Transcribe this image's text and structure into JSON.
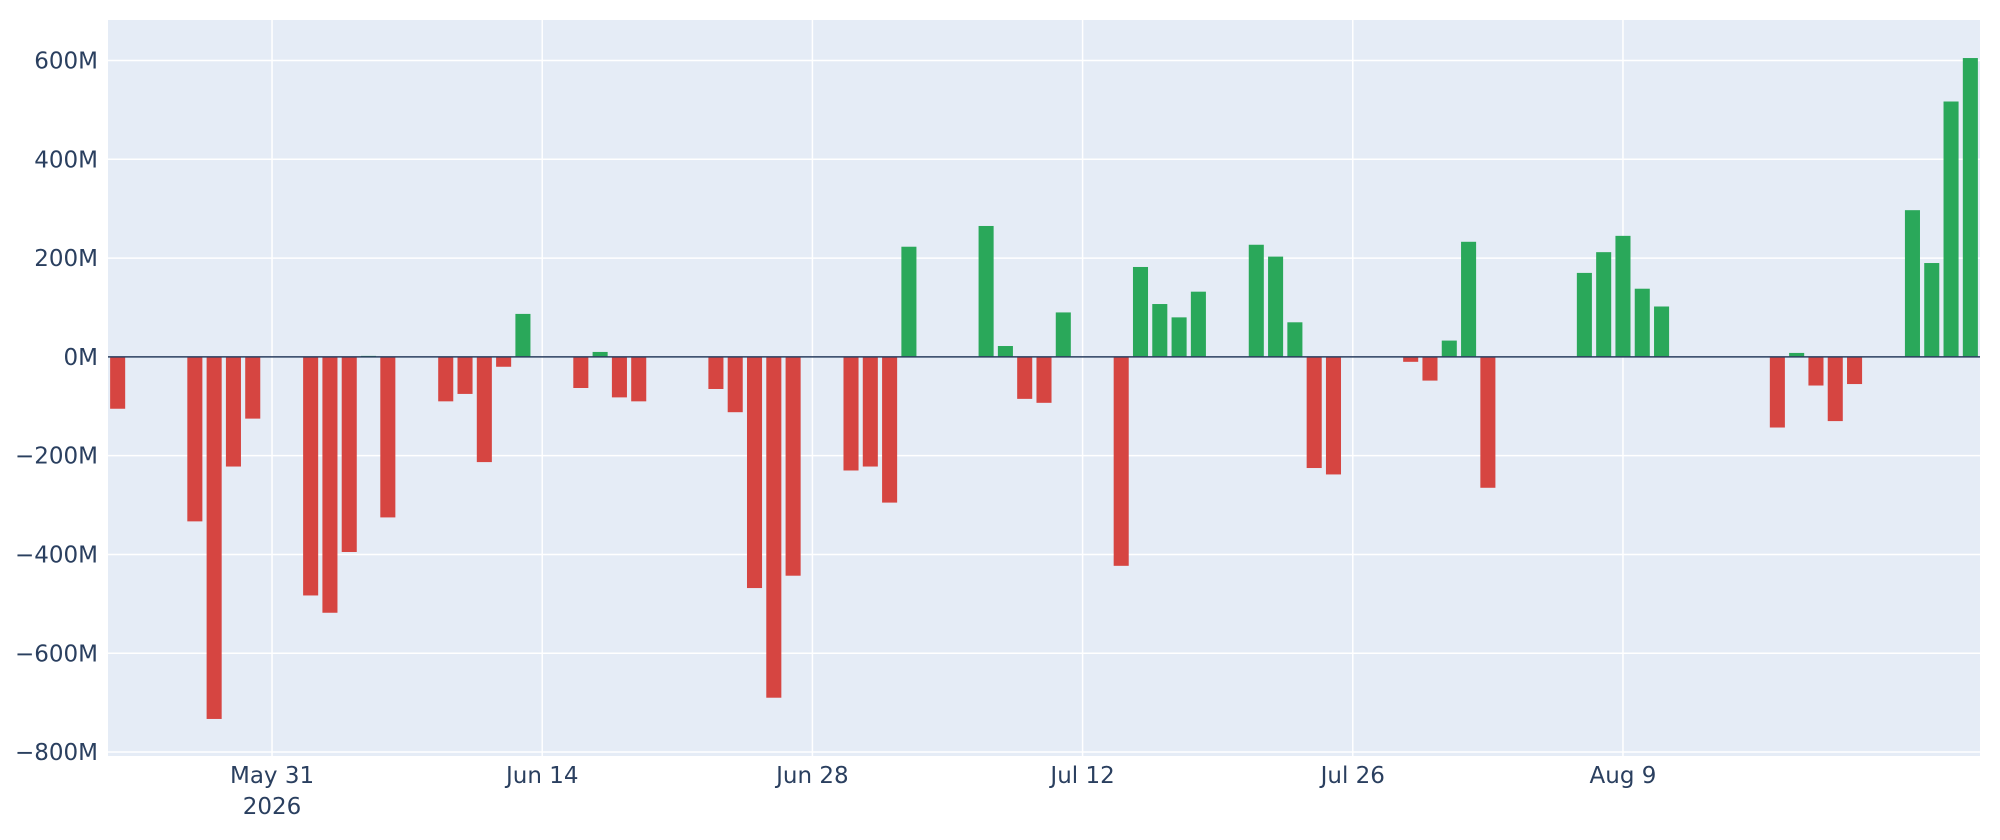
{
  "chart_data": {
    "type": "bar",
    "title": "",
    "xlabel": "",
    "ylabel": "",
    "dates": [
      "2026-05-23",
      "2026-05-24",
      "2026-05-25",
      "2026-05-26",
      "2026-05-27",
      "2026-05-28",
      "2026-05-29",
      "2026-05-30",
      "2026-05-31",
      "2026-06-01",
      "2026-06-02",
      "2026-06-03",
      "2026-06-04",
      "2026-06-05",
      "2026-06-06",
      "2026-06-07",
      "2026-06-08",
      "2026-06-09",
      "2026-06-10",
      "2026-06-11",
      "2026-06-12",
      "2026-06-13",
      "2026-06-14",
      "2026-06-15",
      "2026-06-16",
      "2026-06-17",
      "2026-06-18",
      "2026-06-19",
      "2026-06-20",
      "2026-06-21",
      "2026-06-22",
      "2026-06-23",
      "2026-06-24",
      "2026-06-25",
      "2026-06-26",
      "2026-06-27",
      "2026-06-28",
      "2026-06-29",
      "2026-06-30",
      "2026-07-01",
      "2026-07-02",
      "2026-07-03",
      "2026-07-04",
      "2026-07-05",
      "2026-07-06",
      "2026-07-07",
      "2026-07-08",
      "2026-07-09",
      "2026-07-10",
      "2026-07-11",
      "2026-07-12",
      "2026-07-13",
      "2026-07-14",
      "2026-07-15",
      "2026-07-16",
      "2026-07-17",
      "2026-07-18",
      "2026-07-19",
      "2026-07-20",
      "2026-07-21",
      "2026-07-22",
      "2026-07-23",
      "2026-07-24",
      "2026-07-25",
      "2026-07-26",
      "2026-07-27",
      "2026-07-28",
      "2026-07-29",
      "2026-07-30",
      "2026-07-31",
      "2026-08-01",
      "2026-08-02",
      "2026-08-03",
      "2026-08-04",
      "2026-08-05",
      "2026-08-06",
      "2026-08-07",
      "2026-08-08",
      "2026-08-09",
      "2026-08-10",
      "2026-08-11",
      "2026-08-12",
      "2026-08-13",
      "2026-08-14",
      "2026-08-15",
      "2026-08-16",
      "2026-08-17",
      "2026-08-18",
      "2026-08-19",
      "2026-08-20",
      "2026-08-21"
    ],
    "values": [
      -105,
      0,
      0,
      0,
      -333,
      -733,
      -222,
      -125,
      0,
      0,
      -483,
      -518,
      -395,
      2,
      -325,
      0,
      0,
      -90,
      -75,
      -213,
      -20,
      87,
      0,
      0,
      -63,
      10,
      -82,
      -90,
      0,
      0,
      0,
      -65,
      -112,
      -468,
      -690,
      -443,
      0,
      0,
      -230,
      -222,
      -295,
      223,
      0,
      0,
      0,
      265,
      22,
      -85,
      -93,
      90,
      0,
      0,
      -423,
      182,
      107,
      80,
      132,
      0,
      0,
      227,
      203,
      70,
      -225,
      -238,
      0,
      0,
      0,
      -10,
      -48,
      33,
      233,
      -265,
      0,
      0,
      0,
      0,
      170,
      212,
      245,
      138,
      102,
      0,
      0,
      0,
      0,
      0,
      -143,
      8,
      -58,
      -130,
      -55
    ],
    "values_extra_after_gap": {
      "dates": [
        "2026-08-24",
        "2026-08-25",
        "2026-08-26",
        "2026-08-27"
      ],
      "values": [
        297,
        190,
        517,
        605
      ]
    },
    "value_unit": "M",
    "ylim": [
      -808,
      682
    ],
    "y_ticks": [
      {
        "value": 600,
        "label": "600M"
      },
      {
        "value": 400,
        "label": "400M"
      },
      {
        "value": 200,
        "label": "200M"
      },
      {
        "value": 0,
        "label": "0M"
      },
      {
        "value": -200,
        "label": "−200M"
      },
      {
        "value": -400,
        "label": "−400M"
      },
      {
        "value": -600,
        "label": "−600M"
      },
      {
        "value": -800,
        "label": "−800M"
      }
    ],
    "x_ticks": [
      {
        "date": "2026-05-31",
        "label": "May 31",
        "sublabel": "2026"
      },
      {
        "date": "2026-06-14",
        "label": "Jun 14",
        "sublabel": ""
      },
      {
        "date": "2026-06-28",
        "label": "Jun 28",
        "sublabel": ""
      },
      {
        "date": "2026-07-12",
        "label": "Jul 12",
        "sublabel": ""
      },
      {
        "date": "2026-07-26",
        "label": "Jul 26",
        "sublabel": ""
      },
      {
        "date": "2026-08-09",
        "label": "Aug 9",
        "sublabel": ""
      }
    ],
    "grid": true,
    "legend": "none",
    "colors": {
      "positive": "#2aa85a",
      "negative": "#d64541",
      "plot_background": "#e5ecf6",
      "grid": "#ffffff",
      "zero_line": "#2a3f5f",
      "tick_text": "#2a3f5f"
    }
  }
}
